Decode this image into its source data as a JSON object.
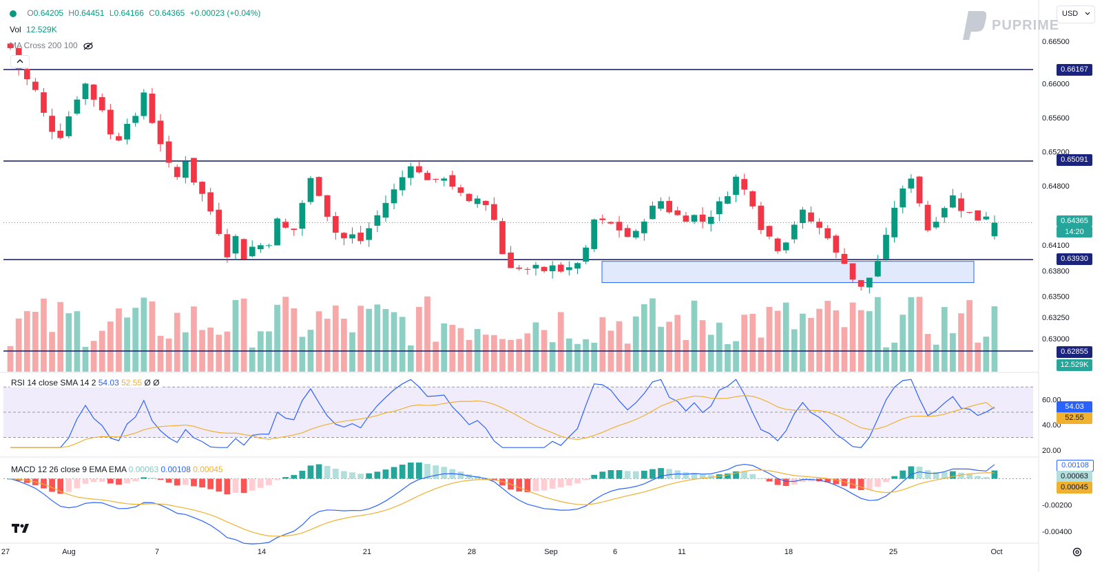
{
  "header": {
    "open_label": "O",
    "open": "0.64205",
    "high_label": "H",
    "high": "0.64451",
    "low_label": "L",
    "low": "0.64166",
    "close_label": "C",
    "close": "0.64365",
    "change": "+0.00023 (+0.04%)",
    "vol_label": "Vol",
    "vol_value": "12.529K",
    "ma_label": "MA Cross 200 100",
    "collapse_icon": "chevron-up-icon",
    "visibility_icon": "eye-off-icon"
  },
  "currency_select": "USD",
  "logo_text": "PUPRIME",
  "colors": {
    "up": "#089981",
    "down": "#f23645",
    "vol_up": "#8ecfc4",
    "vol_down": "#f7a9a9",
    "level_line": "#1a237e",
    "rsi": "#2962ff",
    "rsi_ma": "#f0b030",
    "macd": "#2962ff",
    "signal": "#f0b030",
    "hist_up_strong": "#26a69a",
    "hist_up_weak": "#b2dfdb",
    "hist_down_strong": "#ff5252",
    "hist_down_weak": "#ffcdd2",
    "zone_fill": "#d9e3fb",
    "rsi_band": "#f0ecfb"
  },
  "chart_data": {
    "type": "candlestick",
    "symbol_pair": "USD",
    "price_ticks": [
      "0.66500",
      "0.66000",
      "0.65600",
      "0.65200",
      "0.64800",
      "0.64100",
      "0.63800",
      "0.63500",
      "0.63250",
      "0.63000"
    ],
    "price_ylim_anchor": {
      "value_a": 0.665,
      "value_b": 0.63
    },
    "x_labels": [
      "27",
      "Aug",
      "7",
      "14",
      "21",
      "28",
      "Sep",
      "6",
      "11",
      "18",
      "25",
      "Oct"
    ],
    "horizontal_levels": [
      "0.66167",
      "0.65091",
      "0.63930",
      "0.62855"
    ],
    "last_price_tag": "0.64365",
    "countdown": "14:20",
    "volume_tag": "12.529K",
    "support_zone": {
      "top": 0.6391,
      "bottom": 0.6366
    },
    "path": [
      [
        0.6642,
        5
      ],
      [
        0.6618,
        7
      ],
      [
        0.6605,
        9
      ],
      [
        0.6592,
        11
      ],
      [
        0.6565,
        13
      ],
      [
        0.6545,
        15
      ],
      [
        0.6538,
        17
      ],
      [
        0.6562,
        20
      ],
      [
        0.6583,
        22
      ],
      [
        0.66,
        24
      ],
      [
        0.6582,
        26
      ],
      [
        0.657,
        28
      ],
      [
        0.654,
        30
      ],
      [
        0.6535,
        32
      ],
      [
        0.6555,
        34
      ],
      [
        0.656,
        36
      ],
      [
        0.659,
        38
      ],
      [
        0.6555,
        40
      ],
      [
        0.653,
        42
      ],
      [
        0.6505,
        44
      ],
      [
        0.649,
        46
      ],
      [
        0.651,
        48
      ],
      [
        0.6485,
        50
      ],
      [
        0.647,
        52
      ],
      [
        0.645,
        54
      ],
      [
        0.6425,
        56
      ],
      [
        0.6398,
        58
      ],
      [
        0.642,
        60
      ],
      [
        0.6395,
        62
      ],
      [
        0.6408,
        64
      ],
      [
        0.641,
        66
      ],
      [
        0.6412,
        68
      ],
      [
        0.644,
        70
      ],
      [
        0.643,
        72
      ],
      [
        0.6428,
        74
      ],
      [
        0.646,
        76
      ],
      [
        0.6488,
        78
      ],
      [
        0.647,
        80
      ],
      [
        0.6445,
        82
      ],
      [
        0.6425,
        84
      ],
      [
        0.6418,
        86
      ],
      [
        0.6422,
        88
      ],
      [
        0.6415,
        90
      ],
      [
        0.643,
        92
      ],
      [
        0.6445,
        94
      ],
      [
        0.646,
        96
      ],
      [
        0.6475,
        98
      ],
      [
        0.649,
        100
      ],
      [
        0.6505,
        102
      ],
      [
        0.6495,
        104
      ],
      [
        0.6488,
        106
      ],
      [
        0.6485,
        108
      ],
      [
        0.649,
        110
      ],
      [
        0.648,
        112
      ],
      [
        0.647,
        114
      ],
      [
        0.646,
        116
      ],
      [
        0.6465,
        118
      ],
      [
        0.6458,
        120
      ],
      [
        0.644,
        122
      ],
      [
        0.64,
        124
      ],
      [
        0.6385,
        126
      ],
      [
        0.6382,
        128
      ],
      [
        0.638,
        130
      ],
      [
        0.6385,
        132
      ],
      [
        0.6378,
        134
      ],
      [
        0.6388,
        136
      ],
      [
        0.638,
        138
      ],
      [
        0.6382,
        140
      ],
      [
        0.639,
        142
      ],
      [
        0.6405,
        144
      ],
      [
        0.644,
        146
      ],
      [
        0.6438,
        148
      ],
      [
        0.6435,
        150
      ],
      [
        0.6428,
        152
      ],
      [
        0.642,
        154
      ],
      [
        0.6425,
        156
      ],
      [
        0.644,
        158
      ],
      [
        0.6455,
        160
      ],
      [
        0.6462,
        162
      ],
      [
        0.645,
        164
      ],
      [
        0.6445,
        166
      ],
      [
        0.644,
        168
      ],
      [
        0.6445,
        170
      ],
      [
        0.6438,
        172
      ],
      [
        0.6445,
        174
      ],
      [
        0.646,
        176
      ],
      [
        0.647,
        178
      ],
      [
        0.649,
        180
      ],
      [
        0.6475,
        182
      ],
      [
        0.6458,
        184
      ],
      [
        0.643,
        186
      ],
      [
        0.642,
        188
      ],
      [
        0.6405,
        190
      ],
      [
        0.6415,
        192
      ],
      [
        0.6435,
        194
      ],
      [
        0.645,
        196
      ],
      [
        0.6438,
        198
      ],
      [
        0.643,
        200
      ],
      [
        0.642,
        202
      ],
      [
        0.64,
        204
      ],
      [
        0.639,
        206
      ],
      [
        0.637,
        208
      ],
      [
        0.636,
        210
      ],
      [
        0.6372,
        212
      ],
      [
        0.6392,
        214
      ],
      [
        0.642,
        216
      ],
      [
        0.6455,
        218
      ],
      [
        0.6475,
        220
      ],
      [
        0.649,
        222
      ],
      [
        0.646,
        224
      ],
      [
        0.6428,
        226
      ],
      [
        0.644,
        228
      ],
      [
        0.6455,
        230
      ],
      [
        0.6468,
        232
      ],
      [
        0.6452,
        234
      ],
      [
        0.6448,
        236
      ],
      [
        0.644,
        238
      ],
      [
        0.6445,
        240
      ],
      [
        0.6436,
        242
      ]
    ],
    "rsi": {
      "label": "RSI 14 close SMA 14 2",
      "value": "54.03",
      "ma_value": "52.55",
      "ma_tag": "Ø",
      "extra": "Ø",
      "ticks": [
        "60.00",
        "40.00",
        "20.00"
      ],
      "bands": {
        "upper": 70,
        "middle": 50,
        "lower": 30
      },
      "ylim": [
        15,
        80
      ]
    },
    "macd": {
      "label": "MACD 12 26 close 9 EMA EMA",
      "hist_value": "0.00063",
      "macd_value": "0.00108",
      "signal_value": "0.00045",
      "ticks": [
        "-0.00200",
        "-0.00400"
      ],
      "ylim": [
        -0.0048,
        0.0016
      ]
    }
  }
}
